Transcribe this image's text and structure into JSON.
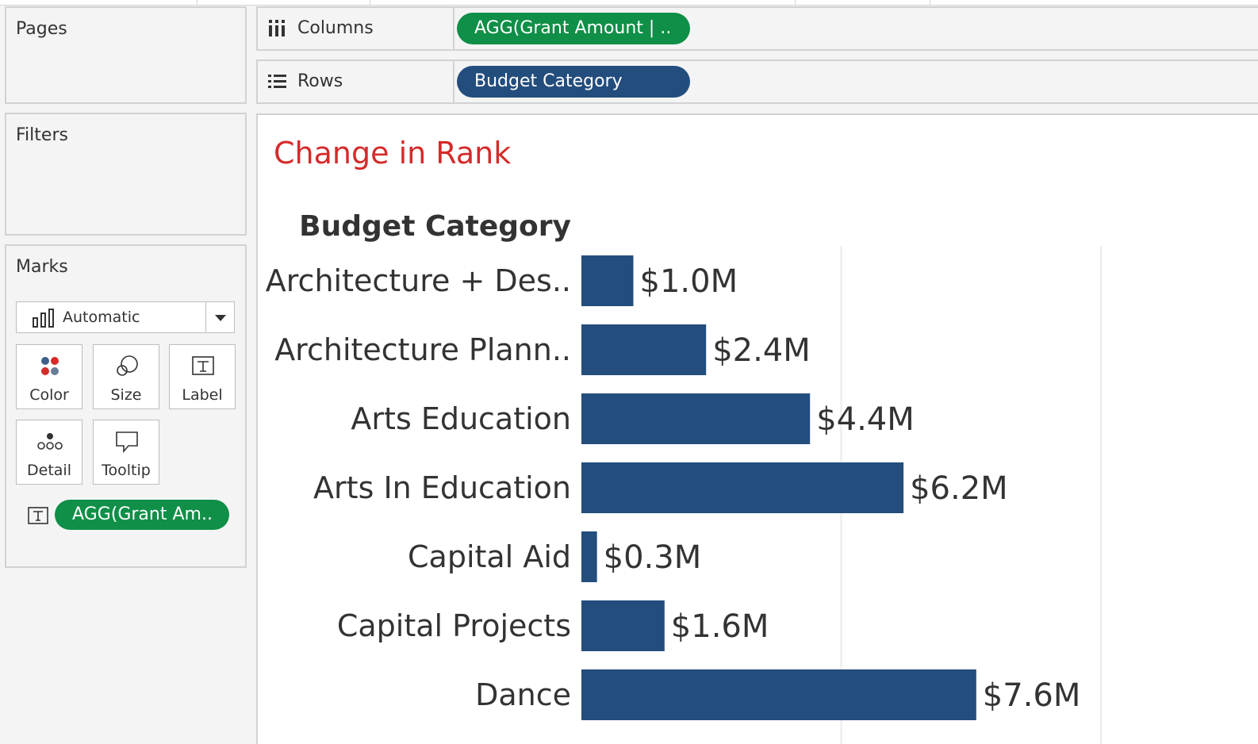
{
  "panels": {
    "pages": {
      "title": "Pages"
    },
    "filters": {
      "title": "Filters"
    },
    "marks": {
      "title": "Marks",
      "mark_type": "Automatic",
      "buttons": {
        "color": "Color",
        "size": "Size",
        "label": "Label",
        "detail": "Detail",
        "tooltip": "Tooltip"
      },
      "label_pill": "AGG(Grant Am.."
    }
  },
  "shelves": {
    "columns": {
      "label": "Columns",
      "pill": "AGG(Grant Amount | .."
    },
    "rows": {
      "label": "Rows",
      "pill": "Budget Category"
    }
  },
  "sheet": {
    "title": "Change in Rank"
  },
  "colors": {
    "title": "#d52b2b",
    "bar": "#234d7d",
    "measure_pill": "#0f8f47",
    "dimension_pill": "#234d7d"
  },
  "chart_data": {
    "type": "bar",
    "orientation": "horizontal",
    "row_header": "Budget Category",
    "categories": [
      "Architecture + Des..",
      "Architecture Plann..",
      "Arts Education",
      "Arts In Education",
      "Capital Aid",
      "Capital Projects",
      "Dance"
    ],
    "values": [
      1.0,
      2.4,
      4.4,
      6.2,
      0.3,
      1.6,
      7.6
    ],
    "labels": [
      "$1.0M",
      "$2.4M",
      "$4.4M",
      "$6.2M",
      "$0.3M",
      "$1.6M",
      "$7.6M"
    ],
    "xlim": [
      0,
      10
    ],
    "grid": true
  }
}
